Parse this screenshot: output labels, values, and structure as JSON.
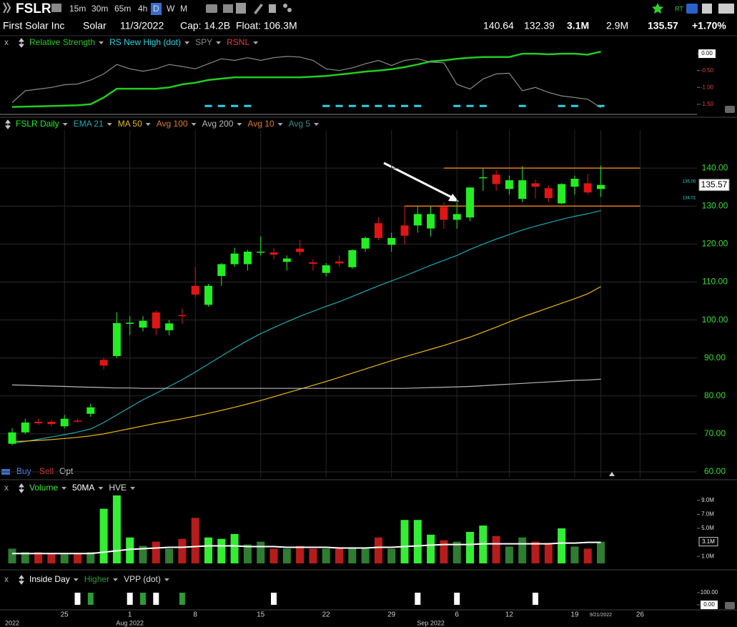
{
  "toolbar": {
    "symbol": "FSLR",
    "intervals": [
      "15m",
      "30m",
      "65m",
      "4h",
      "D",
      "W",
      "M"
    ],
    "rt": "RT"
  },
  "info_bar": {
    "name": "First Solar Inc",
    "sector": "Solar",
    "date": "11/3/2022",
    "cap": "Cap: 14.2B",
    "float": "Float: 106.3M",
    "high": "140.64",
    "low": "132.39",
    "volume": "3.1M",
    "avg_volume": "2.9M",
    "last": "135.57",
    "change": "+1.70%"
  },
  "order_buttons": [
    "Buy",
    "Sell",
    "Opt"
  ],
  "x_axis": {
    "categories": [
      null,
      null,
      null,
      null,
      "25",
      null,
      null,
      null,
      null,
      "1",
      null,
      null,
      null,
      null,
      "8",
      null,
      null,
      null,
      null,
      "15",
      null,
      null,
      null,
      null,
      "22",
      null,
      null,
      null,
      null,
      "29",
      null,
      null,
      null,
      null,
      "6",
      null,
      null,
      null,
      "12",
      null,
      null,
      null,
      null,
      "19",
      null,
      "9/21/2022",
      null,
      null,
      "26"
    ],
    "months": [
      "2022",
      null,
      null,
      null,
      null,
      null,
      null,
      null,
      null,
      "Aug 2022",
      null,
      null,
      null,
      null,
      null,
      null,
      null,
      null,
      null,
      null,
      null,
      null,
      null,
      null,
      null,
      null,
      null,
      null,
      null,
      null,
      null,
      null,
      "Sep 2022",
      null,
      null,
      null,
      null,
      null,
      null,
      null,
      null,
      null,
      null,
      null,
      null,
      null,
      null,
      null,
      null
    ]
  },
  "chart_data": [
    {
      "type": "line",
      "close_label": "x",
      "ylim": [
        -1.8,
        0.15
      ],
      "yticks": [
        {
          "value": 0,
          "label": "0.00"
        },
        {
          "value": -0.5,
          "label": "-0.50"
        },
        {
          "value": -1,
          "label": "-1.00"
        },
        {
          "value": -1.5,
          "label": "-1.50"
        }
      ],
      "series": [
        {
          "name": "Relative Strength",
          "color": "#22cc22",
          "values": [
            -1.58,
            -1.57,
            -1.56,
            -1.55,
            -1.54,
            -1.53,
            -1.5,
            -1.3,
            -1.04,
            -1.04,
            -1.04,
            -1.04,
            -1,
            -0.91,
            -0.86,
            -0.78,
            -0.74,
            -0.7,
            -0.7,
            -0.7,
            -0.7,
            -0.7,
            -0.7,
            -0.68,
            -0.66,
            -0.62,
            -0.58,
            -0.53,
            -0.5,
            -0.46,
            -0.4,
            -0.32,
            -0.23,
            -0.2,
            -0.15,
            -0.12,
            -0.1,
            -0.1,
            -0.1,
            0,
            0,
            -0.02,
            0,
            0,
            -0.03,
            0.06,
            null,
            null,
            null
          ]
        },
        {
          "name": "RS New High (dot)",
          "color": "#2ad4e6",
          "marker": "dash",
          "values": [
            null,
            null,
            null,
            null,
            null,
            null,
            null,
            null,
            null,
            null,
            null,
            null,
            null,
            null,
            null,
            -1.55,
            -1.55,
            -1.55,
            -1.55,
            null,
            null,
            null,
            null,
            null,
            -1.55,
            -1.55,
            -1.55,
            -1.55,
            -1.55,
            -1.55,
            -1.55,
            -1.55,
            null,
            null,
            -1.55,
            -1.55,
            -1.55,
            null,
            null,
            -1.55,
            null,
            null,
            -1.55,
            -1.55,
            null,
            -1.55,
            null,
            null,
            null
          ]
        },
        {
          "name": "SPY",
          "color": "#8a8a8a",
          "values": [
            -1.45,
            -1.1,
            -1.05,
            -1,
            -0.92,
            -0.9,
            -0.78,
            -0.6,
            -0.32,
            -0.45,
            -0.52,
            -0.45,
            -0.32,
            -0.38,
            -0.45,
            -0.3,
            -0.15,
            -0.2,
            -0.12,
            -0.2,
            -0.12,
            -0.08,
            -0.1,
            -0.2,
            -0.45,
            -0.5,
            -0.42,
            -0.3,
            -0.2,
            -0.35,
            -0.2,
            -0.15,
            -0.25,
            -0.27,
            -0.91,
            -1.05,
            -0.75,
            -0.6,
            -0.58,
            -1.1,
            -1,
            -1.15,
            -1.25,
            -1.3,
            -1.35,
            -1.6,
            null,
            null,
            null
          ]
        },
        {
          "name": "RSNL",
          "color": "#e03a3a"
        }
      ]
    },
    {
      "type": "candlestick",
      "name": "FSLR Daily",
      "up_color": "#22ee22",
      "down_color": "#e01515",
      "grid": true,
      "ylim": [
        58.5,
        148.5
      ],
      "yticks": [
        {
          "value": 140,
          "label": "140.00"
        },
        {
          "value": 130,
          "label": "130.00"
        },
        {
          "value": 120,
          "label": "120.00"
        },
        {
          "value": 110,
          "label": "110.00"
        },
        {
          "value": 100,
          "label": "100.00"
        },
        {
          "value": 90,
          "label": "90.00"
        },
        {
          "value": 80,
          "label": "80.00"
        },
        {
          "value": 70,
          "label": "70.00"
        },
        {
          "value": 60,
          "label": "60.00"
        }
      ],
      "side_labels": [
        "135.00",
        "134.01"
      ],
      "open": [
        67.4,
        70.4,
        73.2,
        73.2,
        72,
        73.5,
        75.3,
        89.5,
        90.5,
        99,
        98,
        102,
        97.3,
        101.3,
        109,
        104,
        111.6,
        114.7,
        114.7,
        117.8,
        117.8,
        115.3,
        118.8,
        115.2,
        112.4,
        115.4,
        113.9,
        118.8,
        125.5,
        119.8,
        124.9,
        124.9,
        124.1,
        129.8,
        126.4,
        127,
        137.4,
        138.3,
        134.5,
        131.9,
        136,
        134.7,
        130.7,
        135.1,
        136,
        134.5,
        null,
        null,
        null
      ],
      "high": [
        71.5,
        74,
        74,
        73.8,
        75,
        74,
        78,
        90,
        102,
        101,
        101,
        102.5,
        100,
        103,
        114,
        109.5,
        115,
        119,
        118.5,
        122,
        119,
        117,
        121,
        116,
        115,
        117,
        118.6,
        122,
        127,
        123,
        130,
        130,
        130,
        131,
        131,
        135,
        140,
        139.5,
        138,
        140.5,
        137,
        135.5,
        136,
        138,
        138.5,
        140.64,
        null,
        null,
        null
      ],
      "low": [
        67,
        70,
        72.4,
        72,
        71.5,
        73,
        74.5,
        87,
        90,
        96,
        97,
        96,
        96,
        99,
        106,
        103.5,
        109,
        114,
        113,
        117,
        116,
        113,
        117,
        113,
        111.5,
        114,
        113.5,
        118,
        121,
        118,
        120,
        123,
        122,
        124,
        124,
        126,
        134,
        134,
        133,
        131,
        132,
        131,
        130.5,
        133,
        133,
        132.39,
        null,
        null,
        null
      ],
      "close": [
        70.4,
        73,
        72.8,
        72.6,
        74,
        73.3,
        77,
        88,
        99.2,
        99.3,
        99.8,
        97.8,
        99.1,
        101.1,
        106.7,
        109,
        114.7,
        117.5,
        118,
        118,
        117.2,
        116.2,
        117.9,
        114.8,
        114.4,
        114.9,
        118.4,
        121.6,
        121.6,
        121.6,
        122.2,
        127.9,
        127.9,
        126.4,
        127.9,
        134.9,
        137.6,
        135.8,
        136.8,
        136.8,
        135.1,
        132.1,
        135.8,
        137.2,
        133.6,
        135.57,
        null,
        null,
        null
      ],
      "levels": [
        {
          "value": 140,
          "start": 33,
          "end": 48,
          "color": "#e07a20"
        },
        {
          "value": 130,
          "start": 30,
          "end": 48,
          "color": "#e07a20"
        }
      ],
      "series": [
        {
          "name": "EMA 21",
          "color": "#1fa8b0",
          "values": [
            67.5,
            68,
            68.6,
            69.2,
            69.8,
            70.5,
            71.3,
            73,
            75,
            77,
            79,
            80.7,
            82.5,
            84.3,
            86.3,
            88.4,
            90.5,
            92.6,
            94.6,
            96.4,
            98,
            99.5,
            101,
            102.3,
            103.6,
            104.8,
            106.2,
            107.6,
            109,
            110.3,
            111.6,
            113,
            114.4,
            115.7,
            117,
            118.6,
            120,
            121.3,
            122.5,
            123.7,
            124.7,
            125.6,
            126.5,
            127.3,
            128,
            128.8,
            null,
            null,
            null
          ]
        },
        {
          "name": "MA 50",
          "color": "#e8b818",
          "values": [
            68,
            68.1,
            68.3,
            68.5,
            68.8,
            69.1,
            69.5,
            70,
            70.7,
            71.4,
            72.1,
            72.8,
            73.4,
            74,
            74.7,
            75.4,
            76.2,
            77,
            77.9,
            78.8,
            79.8,
            80.8,
            81.8,
            82.8,
            83.8,
            84.9,
            86,
            87.1,
            88.2,
            89.3,
            90.3,
            91.3,
            92.3,
            93.3,
            94.4,
            95.5,
            96.8,
            98.1,
            99.5,
            100.8,
            102,
            103.2,
            104.4,
            105.6,
            106.9,
            108.8,
            null,
            null,
            null
          ]
        },
        {
          "name": "Avg 100",
          "color": "#e07a20"
        },
        {
          "name": "Avg 200",
          "color": "#b8b8b8",
          "values": [
            82.9,
            82.8,
            82.7,
            82.6,
            82.5,
            82.4,
            82.3,
            82.2,
            82.1,
            82.1,
            82,
            82,
            82,
            82,
            82,
            82,
            82,
            82,
            82,
            82,
            82,
            82,
            82,
            82,
            82,
            82,
            82,
            82,
            82,
            82,
            82,
            82.1,
            82.2,
            82.3,
            82.4,
            82.5,
            82.7,
            82.9,
            83.1,
            83.3,
            83.5,
            83.7,
            83.9,
            84.1,
            84.2,
            84.4,
            null,
            null,
            null
          ]
        },
        {
          "name": "Avg 10",
          "color": "#e07a20"
        },
        {
          "name": "Avg 5",
          "color": "#3a8c8c"
        }
      ]
    },
    {
      "type": "bar",
      "close_label": "x",
      "ylim": [
        -0.2,
        10
      ],
      "yticks": [
        {
          "value": 9,
          "label": "9.0M"
        },
        {
          "value": 7,
          "label": "7.0M"
        },
        {
          "value": 5,
          "label": "5.0M"
        },
        {
          "value": 1,
          "label": "1.0M"
        }
      ],
      "series": [
        {
          "name": "Volume",
          "color": "#33ee33",
          "values": [
            2.1,
            1.6,
            1.6,
            1.5,
            1.3,
            1.5,
            1.6,
            7.8,
            9.7,
            3.7,
            2.5,
            3.1,
            2.1,
            3.5,
            6.5,
            3.7,
            3.5,
            4.2,
            2.7,
            3.1,
            2.1,
            2.1,
            2.5,
            2.1,
            2.1,
            2.1,
            2.1,
            2.1,
            3.7,
            2.1,
            6.2,
            6.2,
            4.1,
            3.3,
            3.1,
            4.5,
            5.4,
            3.9,
            2.4,
            3.7,
            3.1,
            2.9,
            5,
            2.4,
            2.1,
            3.1,
            null,
            null,
            null
          ],
          "colors": [
            "#2e7d32",
            "#2e7d32",
            "#b71c1c",
            "#b71c1c",
            "#2e7d32",
            "#b71c1c",
            "#2e7d32",
            "#33ee33",
            "#33ee33",
            "#33ee33",
            "#2e7d32",
            "#b71c1c",
            "#2e7d32",
            "#b71c1c",
            "#b71c1c",
            "#33ee33",
            "#33ee33",
            "#33ee33",
            "#2e7d32",
            "#2e7d32",
            "#b71c1c",
            "#2e7d32",
            "#b71c1c",
            "#b71c1c",
            "#2e7d32",
            "#b71c1c",
            "#2e7d32",
            "#2e7d32",
            "#b71c1c",
            "#2e7d32",
            "#33ee33",
            "#33ee33",
            "#33ee33",
            "#b71c1c",
            "#2e7d32",
            "#33ee33",
            "#33ee33",
            "#b71c1c",
            "#2e7d32",
            "#2e7d32",
            "#b71c1c",
            "#b71c1c",
            "#33ee33",
            "#2e7d32",
            "#b71c1c",
            "#2e7d32",
            null,
            null,
            null
          ]
        },
        {
          "name": "50MA",
          "color": "#ffffff",
          "values": [
            1.4,
            1.4,
            1.4,
            1.4,
            1.4,
            1.4,
            1.4,
            1.6,
            1.8,
            2,
            2.1,
            2.2,
            2.3,
            2.3,
            2.4,
            2.5,
            2.5,
            2.5,
            2.4,
            2.4,
            2.4,
            2.3,
            2.3,
            2.3,
            2.3,
            2.2,
            2.2,
            2.2,
            2.3,
            2.3,
            2.4,
            2.5,
            2.6,
            2.7,
            2.7,
            2.7,
            2.8,
            2.8,
            2.8,
            2.8,
            2.8,
            2.8,
            2.9,
            2.9,
            3,
            3,
            null,
            null,
            null
          ]
        },
        {
          "name": "HVE",
          "color": "#dddddd"
        }
      ]
    },
    {
      "type": "signal",
      "close_label": "x",
      "ylim": [
        -23.5,
        153
      ],
      "yticks": [
        {
          "value": 100,
          "label": "100.00"
        },
        {
          "value": 0,
          "label": "0.00"
        }
      ],
      "series": [
        {
          "name": "Inside Day",
          "color": "#ffffff",
          "values": [
            null,
            null,
            null,
            null,
            null,
            100,
            null,
            null,
            null,
            100,
            null,
            100,
            null,
            null,
            null,
            null,
            null,
            null,
            null,
            null,
            100,
            null,
            null,
            null,
            null,
            null,
            null,
            null,
            null,
            null,
            null,
            100,
            null,
            null,
            100,
            null,
            null,
            null,
            null,
            null,
            100,
            null,
            null,
            null,
            null,
            null,
            null,
            null,
            null
          ]
        },
        {
          "name": "Higher",
          "color": "#2e9a35",
          "values": [
            null,
            null,
            null,
            null,
            null,
            null,
            100,
            null,
            null,
            null,
            100,
            null,
            null,
            100,
            null,
            null,
            null,
            null,
            null,
            null,
            null,
            null,
            null,
            null,
            null,
            null,
            null,
            null,
            null,
            null,
            null,
            null,
            null,
            null,
            null,
            null,
            null,
            null,
            null,
            null,
            null,
            null,
            null,
            null,
            null,
            null,
            null,
            null,
            null
          ]
        },
        {
          "name": "VPP (dot)",
          "color": "#dddddd"
        }
      ]
    }
  ]
}
